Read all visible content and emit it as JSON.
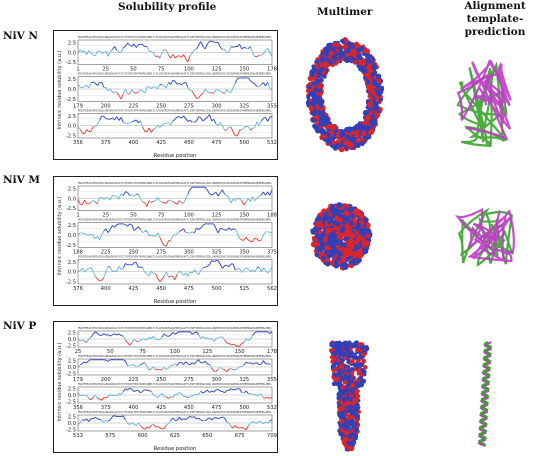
{
  "headers": {
    "solubility": "Solubility profile",
    "multimer": "Multimer",
    "alignment_line1": "Alignment",
    "alignment_line2": "template-prediction"
  },
  "rows": [
    {
      "label": "NiV N",
      "y_axis_label": "Intrinsic residue solubility (a.u.)",
      "x_axis_label": "Residue position",
      "strips": [
        {
          "ticks": [
            "1",
            "25",
            "50",
            "75",
            "100",
            "125",
            "150",
            "178"
          ],
          "seed": 3
        },
        {
          "ticks": [
            "179",
            "200",
            "225",
            "250",
            "275",
            "300",
            "325",
            "355"
          ],
          "seed": 7
        },
        {
          "ticks": [
            "356",
            "375",
            "400",
            "425",
            "450",
            "475",
            "500",
            "532"
          ],
          "seed": 11
        }
      ]
    },
    {
      "label": "NiV M",
      "y_axis_label": "Intrinsic residue solubility (a.u.)",
      "x_axis_label": "Residue position",
      "strips": [
        {
          "ticks": [
            "1",
            "25",
            "50",
            "75",
            "100",
            "125",
            "150",
            "188"
          ],
          "seed": 17
        },
        {
          "ticks": [
            "188",
            "225",
            "250",
            "275",
            "300",
            "325",
            "350",
            "375"
          ],
          "seed": 23
        },
        {
          "ticks": [
            "376",
            "400",
            "425",
            "450",
            "475",
            "500",
            "525",
            "562"
          ],
          "seed": 29
        }
      ]
    },
    {
      "label": "NiV P",
      "y_axis_label": "Intrinsic residue solubility (a.u.)",
      "x_axis_label": "Residue position",
      "strips": [
        {
          "ticks": [
            "25",
            "50",
            "75",
            "100",
            "125",
            "150",
            "178"
          ],
          "seed": 31
        },
        {
          "ticks": [
            "179",
            "200",
            "225",
            "250",
            "275",
            "300",
            "325",
            "355"
          ],
          "seed": 37
        },
        {
          "ticks": [
            "356",
            "375",
            "400",
            "425",
            "450",
            "475",
            "500",
            "532"
          ],
          "seed": 41
        },
        {
          "ticks": [
            "533",
            "575",
            "600",
            "625",
            "650",
            "675",
            "709"
          ],
          "seed": 43
        }
      ]
    }
  ],
  "y_ticks": [
    "2.5",
    "0.0",
    "-2.5"
  ],
  "colors": {
    "soluble": "#2b3fb8",
    "neutral": "#5fb4d9",
    "insoluble": "#e03a2a",
    "multimer_blue": "#3140b8",
    "multimer_red": "#d9262b",
    "align_magenta": "#c03ac8",
    "align_green": "#3aa32a"
  }
}
